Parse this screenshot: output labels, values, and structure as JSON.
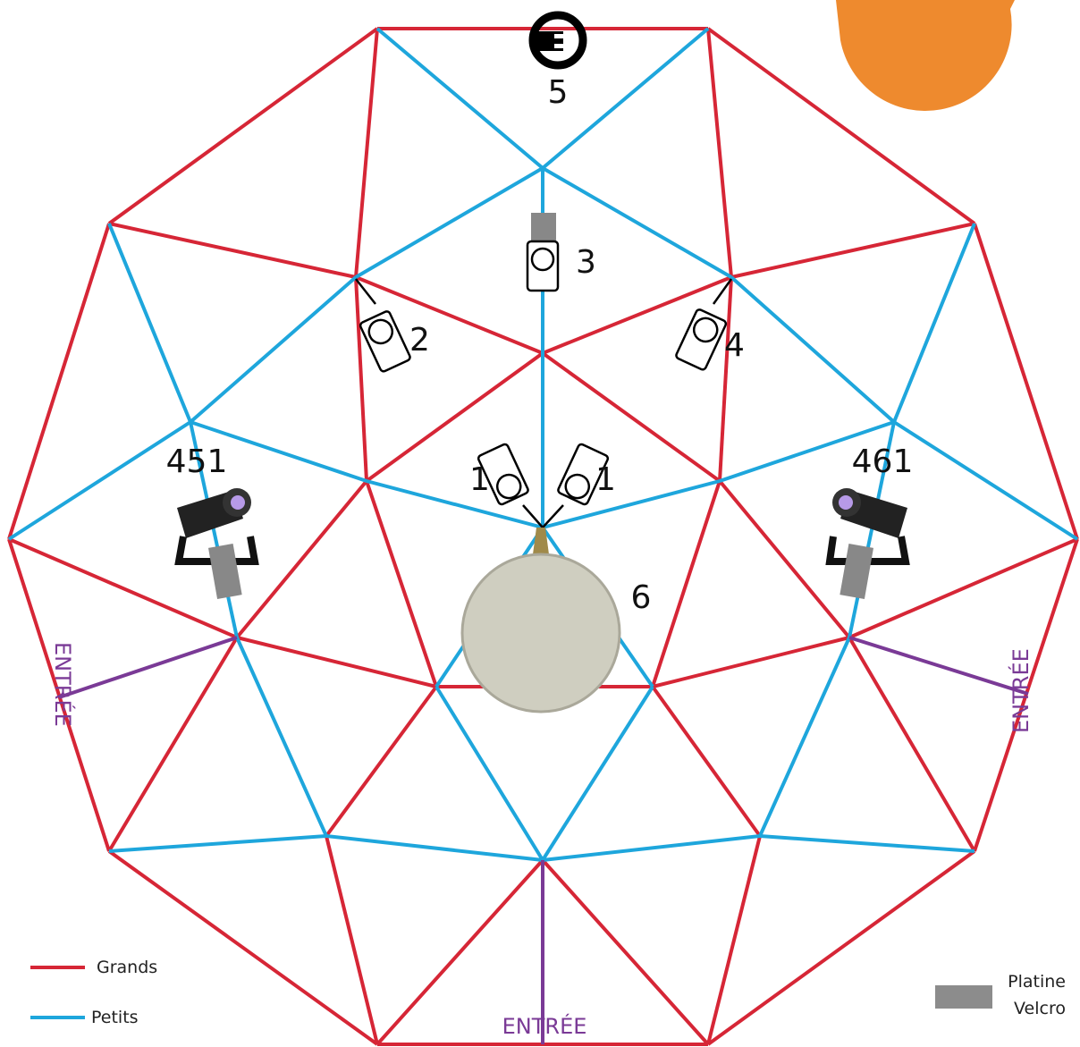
{
  "labels": {
    "power": "5",
    "fixtures": [
      "1",
      "1",
      "2",
      "3",
      "4"
    ],
    "spot_left": "451",
    "spot_right": "461",
    "moon": "6"
  },
  "entrances": [
    "ENTRÉE",
    "ENTRÉE",
    "ENTRÉE"
  ],
  "legend": {
    "grands": "Grands",
    "petits": "Petits",
    "plate_line1": "Platine",
    "plate_line2": "Velcro"
  }
}
